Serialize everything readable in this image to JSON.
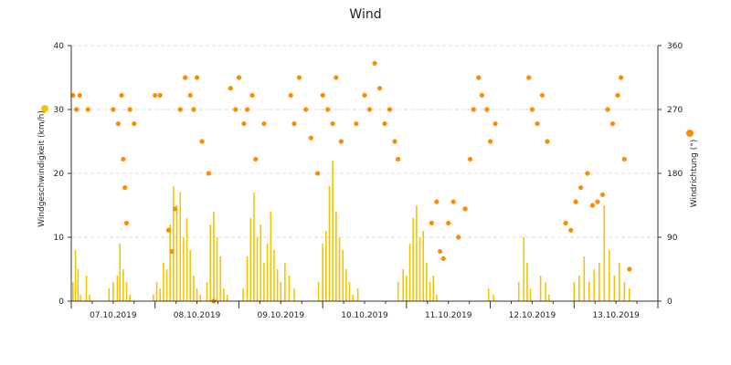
{
  "chart_data": {
    "title": "Wind",
    "type": "bar+scatter",
    "x_tick_labels": [
      "07.10.2019",
      "08.10.2019",
      "09.10.2019",
      "10.10.2019",
      "11.10.2019",
      "12.10.2019",
      "13.10.2019"
    ],
    "y_left": {
      "label": "Windgeschwindigkeit (km/h)",
      "ticks": [
        0,
        10,
        20,
        30,
        40
      ],
      "range": [
        0,
        40
      ]
    },
    "y_right": {
      "label": "Windrichtung (°)",
      "ticks": [
        0,
        90,
        180,
        270,
        360
      ],
      "range": [
        0,
        360
      ]
    },
    "grid": true,
    "legend_markers": [
      "left-axis-speed-marker",
      "right-axis-direction-marker"
    ],
    "colors": {
      "speed": "#f5c400",
      "direction": "#ff8c00",
      "grid": "#dddddd",
      "axis": "#333333"
    },
    "series": [
      {
        "name": "Windgeschwindigkeit",
        "type": "bar",
        "axis": "left",
        "x_range_days": [
          0,
          7
        ],
        "note_values": "one value per reading, days from start of 07.10.2019",
        "values": [
          [
            0.02,
            3
          ],
          [
            0.05,
            8
          ],
          [
            0.08,
            5
          ],
          [
            0.11,
            1
          ],
          [
            0.14,
            0
          ],
          [
            0.18,
            4
          ],
          [
            0.22,
            1
          ],
          [
            0.26,
            0
          ],
          [
            0.45,
            2
          ],
          [
            0.5,
            3
          ],
          [
            0.55,
            4
          ],
          [
            0.58,
            9
          ],
          [
            0.62,
            5
          ],
          [
            0.66,
            3
          ],
          [
            0.7,
            1
          ],
          [
            0.75,
            0
          ],
          [
            0.98,
            1
          ],
          [
            1.02,
            3
          ],
          [
            1.06,
            2
          ],
          [
            1.1,
            6
          ],
          [
            1.14,
            5
          ],
          [
            1.18,
            12
          ],
          [
            1.22,
            18
          ],
          [
            1.26,
            15
          ],
          [
            1.3,
            17
          ],
          [
            1.34,
            10
          ],
          [
            1.38,
            13
          ],
          [
            1.42,
            8
          ],
          [
            1.46,
            4
          ],
          [
            1.5,
            2
          ],
          [
            1.54,
            1
          ],
          [
            1.62,
            3
          ],
          [
            1.66,
            12
          ],
          [
            1.7,
            14
          ],
          [
            1.74,
            10
          ],
          [
            1.78,
            7
          ],
          [
            1.82,
            2
          ],
          [
            1.86,
            1
          ],
          [
            1.92,
            0
          ],
          [
            2.05,
            2
          ],
          [
            2.1,
            7
          ],
          [
            2.14,
            13
          ],
          [
            2.18,
            17
          ],
          [
            2.22,
            10
          ],
          [
            2.26,
            12
          ],
          [
            2.3,
            6
          ],
          [
            2.34,
            9
          ],
          [
            2.38,
            14
          ],
          [
            2.42,
            8
          ],
          [
            2.46,
            5
          ],
          [
            2.5,
            3
          ],
          [
            2.55,
            6
          ],
          [
            2.6,
            4
          ],
          [
            2.66,
            2
          ],
          [
            2.95,
            3
          ],
          [
            3.0,
            9
          ],
          [
            3.04,
            11
          ],
          [
            3.08,
            18
          ],
          [
            3.12,
            22
          ],
          [
            3.16,
            14
          ],
          [
            3.2,
            10
          ],
          [
            3.24,
            8
          ],
          [
            3.28,
            5
          ],
          [
            3.32,
            3
          ],
          [
            3.36,
            1
          ],
          [
            3.42,
            2
          ],
          [
            3.9,
            3
          ],
          [
            3.96,
            5
          ],
          [
            4.0,
            4
          ],
          [
            4.04,
            9
          ],
          [
            4.08,
            13
          ],
          [
            4.12,
            15
          ],
          [
            4.16,
            10
          ],
          [
            4.2,
            11
          ],
          [
            4.24,
            6
          ],
          [
            4.28,
            3
          ],
          [
            4.32,
            4
          ],
          [
            4.36,
            1
          ],
          [
            4.98,
            2
          ],
          [
            5.04,
            1
          ],
          [
            5.34,
            3
          ],
          [
            5.4,
            10
          ],
          [
            5.44,
            6
          ],
          [
            5.48,
            2
          ],
          [
            5.6,
            4
          ],
          [
            5.66,
            3
          ],
          [
            5.7,
            1
          ],
          [
            6.0,
            3
          ],
          [
            6.06,
            4
          ],
          [
            6.12,
            7
          ],
          [
            6.18,
            3
          ],
          [
            6.24,
            5
          ],
          [
            6.3,
            6
          ],
          [
            6.36,
            15
          ],
          [
            6.42,
            8
          ],
          [
            6.48,
            4
          ],
          [
            6.54,
            6
          ],
          [
            6.6,
            3
          ],
          [
            6.66,
            2
          ]
        ]
      },
      {
        "name": "Windrichtung",
        "type": "scatter",
        "axis": "right",
        "values": [
          [
            0.02,
            290
          ],
          [
            0.06,
            270
          ],
          [
            0.1,
            290
          ],
          [
            0.2,
            270
          ],
          [
            0.5,
            270
          ],
          [
            0.56,
            250
          ],
          [
            0.6,
            290
          ],
          [
            0.62,
            200
          ],
          [
            0.64,
            160
          ],
          [
            0.66,
            110
          ],
          [
            0.7,
            270
          ],
          [
            0.75,
            250
          ],
          [
            1.0,
            290
          ],
          [
            1.06,
            290
          ],
          [
            1.16,
            100
          ],
          [
            1.2,
            70
          ],
          [
            1.24,
            130
          ],
          [
            1.3,
            270
          ],
          [
            1.36,
            315
          ],
          [
            1.42,
            290
          ],
          [
            1.46,
            270
          ],
          [
            1.5,
            315
          ],
          [
            1.56,
            225
          ],
          [
            1.64,
            180
          ],
          [
            1.7,
            0
          ],
          [
            1.9,
            300
          ],
          [
            1.96,
            270
          ],
          [
            2.0,
            315
          ],
          [
            2.06,
            250
          ],
          [
            2.1,
            270
          ],
          [
            2.16,
            290
          ],
          [
            2.2,
            200
          ],
          [
            2.3,
            250
          ],
          [
            2.62,
            290
          ],
          [
            2.66,
            250
          ],
          [
            2.72,
            315
          ],
          [
            2.8,
            270
          ],
          [
            2.86,
            230
          ],
          [
            2.94,
            180
          ],
          [
            3.0,
            290
          ],
          [
            3.06,
            270
          ],
          [
            3.12,
            250
          ],
          [
            3.16,
            315
          ],
          [
            3.22,
            225
          ],
          [
            3.4,
            250
          ],
          [
            3.5,
            290
          ],
          [
            3.56,
            270
          ],
          [
            3.62,
            335
          ],
          [
            3.68,
            300
          ],
          [
            3.74,
            250
          ],
          [
            3.8,
            270
          ],
          [
            3.86,
            225
          ],
          [
            3.9,
            200
          ],
          [
            4.3,
            110
          ],
          [
            4.36,
            140
          ],
          [
            4.4,
            70
          ],
          [
            4.44,
            60
          ],
          [
            4.5,
            110
          ],
          [
            4.56,
            140
          ],
          [
            4.62,
            90
          ],
          [
            4.7,
            130
          ],
          [
            4.76,
            200
          ],
          [
            4.8,
            270
          ],
          [
            4.86,
            315
          ],
          [
            4.9,
            290
          ],
          [
            4.96,
            270
          ],
          [
            5.0,
            225
          ],
          [
            5.06,
            250
          ],
          [
            5.46,
            315
          ],
          [
            5.5,
            270
          ],
          [
            5.56,
            250
          ],
          [
            5.62,
            290
          ],
          [
            5.68,
            225
          ],
          [
            5.9,
            110
          ],
          [
            5.96,
            100
          ],
          [
            6.02,
            140
          ],
          [
            6.08,
            160
          ],
          [
            6.16,
            180
          ],
          [
            6.22,
            135
          ],
          [
            6.28,
            140
          ],
          [
            6.34,
            150
          ],
          [
            6.4,
            270
          ],
          [
            6.46,
            250
          ],
          [
            6.52,
            290
          ],
          [
            6.56,
            315
          ],
          [
            6.6,
            200
          ],
          [
            6.66,
            45
          ]
        ]
      }
    ]
  }
}
